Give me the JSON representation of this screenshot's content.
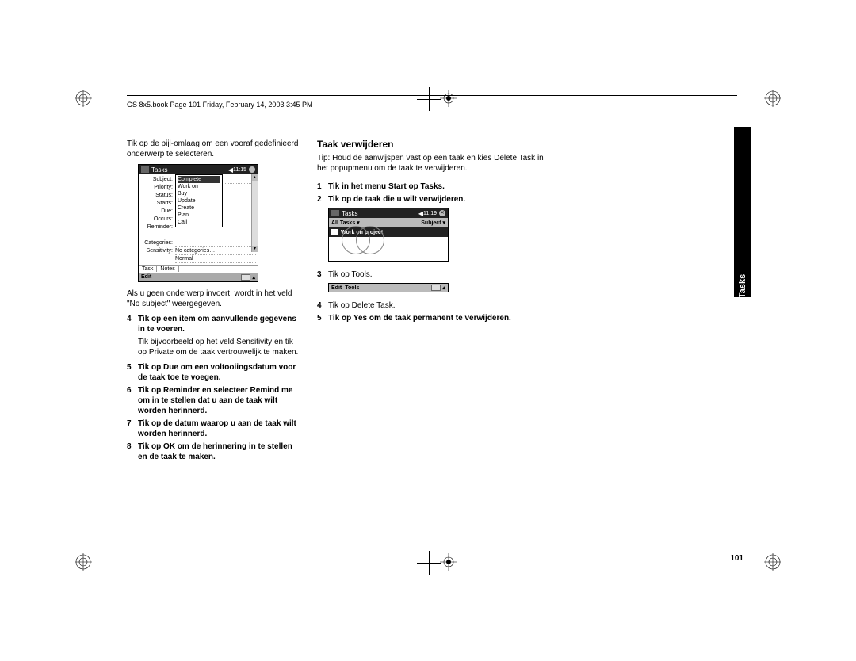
{
  "header": "GS 8x5.book  Page 101  Friday, February 14, 2003  3:45 PM",
  "side_tab": "Tasks",
  "page_number": "101",
  "left": {
    "intro": "Tik op de pijl-omlaag om een vooraf gedefinieerd onderwerp te selecteren.",
    "sub": "Als u geen onderwerp invoert, wordt in het veld \"No subject\" weergegeven.",
    "steps": [
      {
        "n": "4",
        "text": "Tik op een item om aanvullende gegevens in te voeren.",
        "bold": true,
        "sub": "Tik bijvoorbeeld op het veld Sensitivity en tik op Private om de taak vertrouwelijk te maken."
      },
      {
        "n": "5",
        "text": "Tik op Due om een voltooiingsdatum voor de taak toe te voegen.",
        "bold": true
      },
      {
        "n": "6",
        "text": "Tik op Reminder en selecteer Remind me om in te stellen dat u aan de taak wilt worden herinnerd.",
        "bold": true
      },
      {
        "n": "7",
        "text": "Tik op de datum waarop u aan de taak wilt worden herinnerd.",
        "bold": true
      },
      {
        "n": "8",
        "text": "Tik op OK om de herinnering in te stellen en de taak te maken.",
        "bold": true
      }
    ]
  },
  "right": {
    "heading": "Taak verwijderen",
    "tip": "Tip: Houd de aanwijspen vast op een taak en kies Delete Task in het popupmenu om de taak te verwijderen.",
    "steps": [
      {
        "n": "1",
        "text": "Tik in het menu Start op Tasks.",
        "bold": true
      },
      {
        "n": "2",
        "text": "Tik op de taak die u wilt verwijderen.",
        "bold": true
      },
      {
        "n": "3",
        "text": "Tik op Tools.",
        "bold": false
      },
      {
        "n": "4",
        "text": "Tik op Delete Task.",
        "bold": false
      },
      {
        "n": "5",
        "text": "Tik op Yes om de taak permanent te verwijderen.",
        "bold": true
      }
    ]
  },
  "shot1": {
    "title": "Tasks",
    "time": "11:15",
    "labels": [
      "Subject:",
      "Priority:",
      "Status:",
      "Starts:",
      "Due:",
      "Occurs:",
      "Reminder:",
      "",
      "Categories:",
      "Sensitivity:"
    ],
    "dropdown": [
      "Complete",
      "Work on",
      "Buy",
      "Update",
      "Create",
      "Plan",
      "Call"
    ],
    "cat_value": "No categories…",
    "sens_value": "Normal",
    "tabs": [
      "Task",
      "Notes"
    ],
    "bottom": "Edit"
  },
  "shot2": {
    "title": "Tasks",
    "time": "11:19",
    "filter_left": "All Tasks ▾",
    "filter_right": "Subject ▾",
    "task": "Work on project"
  },
  "shot3": {
    "items": [
      "Edit",
      "Tools"
    ]
  }
}
